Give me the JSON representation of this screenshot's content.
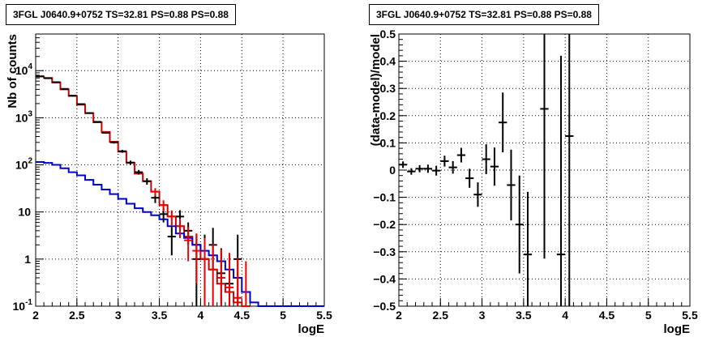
{
  "chart_data": [
    {
      "type": "line",
      "title": "3FGL J0640.9+0752 TS=32.81 PS=0.88 PS=0.88",
      "xlabel": "logE",
      "ylabel": "Nb of counts",
      "xlim": [
        2,
        5.5
      ],
      "ylim": [
        0.1,
        60000
      ],
      "yscale": "log",
      "grid": true,
      "x_ticks": [
        "2",
        "2.5",
        "3",
        "3.5",
        "4",
        "4.5",
        "5",
        "5.5"
      ],
      "y_ticks": [
        "10^-1",
        "1",
        "10",
        "10^2",
        "10^3",
        "10^4"
      ],
      "series": [
        {
          "color": "#cc0000",
          "style": "step",
          "x": [
            2.05,
            2.15,
            2.25,
            2.35,
            2.45,
            2.55,
            2.65,
            2.75,
            2.85,
            2.95,
            3.05,
            3.15,
            3.25,
            3.35,
            3.45,
            3.55,
            3.65,
            3.75,
            3.85,
            3.95,
            4.05,
            4.15,
            4.25,
            4.35,
            4.45,
            4.55
          ],
          "y": [
            7500,
            7000,
            5600,
            4000,
            2900,
            1900,
            1250,
            800,
            500,
            310,
            190,
            110,
            65,
            45,
            27,
            14,
            8,
            5,
            3,
            2,
            1,
            0.6,
            0.3,
            0.2,
            0.12,
            0.1
          ]
        },
        {
          "color": "#0000cc",
          "style": "step",
          "x": [
            2.05,
            2.15,
            2.25,
            2.35,
            2.45,
            2.55,
            2.65,
            2.75,
            2.85,
            2.95,
            3.05,
            3.15,
            3.25,
            3.35,
            3.45,
            3.55,
            3.65,
            3.75,
            3.85,
            3.95,
            4.05,
            4.15,
            4.25,
            4.35,
            4.45,
            4.55,
            4.65,
            4.75,
            4.85,
            4.95,
            5.05,
            5.15,
            5.25,
            5.35,
            5.45
          ],
          "y": [
            115,
            110,
            100,
            85,
            70,
            60,
            48,
            38,
            30,
            24,
            19,
            15,
            12,
            10,
            8.5,
            7,
            5,
            3.5,
            2.8,
            2,
            1.5,
            1.2,
            0.9,
            0.6,
            0.4,
            0.2,
            0.12,
            0.1,
            0.1,
            0.1,
            0.1,
            0.1,
            0.1,
            0.1,
            0.1
          ]
        },
        {
          "color": "#000000",
          "style": "errorbar",
          "x": [
            2.05,
            2.15,
            2.25,
            2.35,
            2.45,
            2.55,
            2.65,
            2.75,
            2.85,
            2.95,
            3.05,
            3.15,
            3.25,
            3.35,
            3.45,
            3.55,
            3.65,
            3.75,
            3.85,
            3.95,
            4.05,
            4.15,
            4.25,
            4.35,
            4.45
          ],
          "y": [
            7600,
            6900,
            5700,
            4100,
            2950,
            1950,
            1260,
            820,
            480,
            300,
            195,
            112,
            70,
            45,
            20,
            9,
            3,
            8,
            4,
            1,
            1,
            2,
            0.5,
            0.3,
            1
          ],
          "yerr_low": [
            90,
            85,
            75,
            64,
            54,
            44,
            35,
            28,
            22,
            17,
            14,
            11,
            8,
            7,
            4.5,
            3,
            1.8,
            2.9,
            2,
            0.9,
            0.9,
            1.4,
            0.45,
            0.27,
            0.9
          ],
          "yerr_high": [
            90,
            85,
            75,
            64,
            54,
            44,
            35,
            28,
            22,
            17,
            14,
            11,
            8,
            7,
            4.5,
            3,
            1.8,
            2.9,
            2,
            2.3,
            2.3,
            2.6,
            1.2,
            1,
            2.3
          ]
        },
        {
          "color": "#ee0000",
          "style": "errorbar",
          "x": [
            3.45,
            3.55,
            3.65,
            3.75,
            3.85,
            3.95,
            4.05,
            4.15,
            4.25,
            4.35,
            4.45,
            4.55
          ],
          "y": [
            27,
            14,
            8,
            5,
            2.5,
            1.5,
            1,
            0.6,
            0.4,
            0.25,
            0.15,
            0.1
          ],
          "yerr_low": [
            5,
            3.7,
            2.8,
            2.2,
            1.6,
            1.2,
            0.9,
            0.55,
            0.38,
            0.24,
            0.14,
            0.09
          ],
          "yerr_high": [
            5,
            3.7,
            2.8,
            2.2,
            2.3,
            2,
            1.8,
            1.5,
            1.2,
            1.1,
            0.9,
            0.8
          ]
        }
      ]
    },
    {
      "type": "scatter",
      "title": "3FGL J0640.9+0752 TS=32.81 PS=0.88 PS=0.88",
      "xlabel": "logE",
      "ylabel": "(data-model)/model",
      "xlim": [
        2,
        5.5
      ],
      "ylim": [
        -0.5,
        0.5
      ],
      "grid": true,
      "x_ticks": [
        "2",
        "2.5",
        "3",
        "3.5",
        "4",
        "4.5",
        "5",
        "5.5"
      ],
      "y_ticks": [
        "−0.5",
        "−0.4",
        "−0.3",
        "−0.2",
        "−0.1",
        "0",
        "0.1",
        "0.2",
        "0.3",
        "0.4",
        "0.5"
      ],
      "series": [
        {
          "color": "#000000",
          "x": [
            2.05,
            2.15,
            2.25,
            2.35,
            2.45,
            2.55,
            2.65,
            2.75,
            2.85,
            2.95,
            3.05,
            3.15,
            3.25,
            3.35,
            3.45,
            3.55,
            3.75,
            3.95,
            4.05
          ],
          "y": [
            0.02,
            -0.005,
            0.005,
            0.005,
            -0.002,
            0.033,
            0.01,
            0.055,
            -0.03,
            -0.09,
            0.04,
            0.013,
            0.175,
            -0.055,
            -0.2,
            -0.31,
            0.225,
            -0.31,
            0.125
          ],
          "yerr": [
            0.012,
            0.012,
            0.013,
            0.015,
            0.018,
            0.02,
            0.023,
            0.027,
            0.035,
            0.045,
            0.055,
            0.07,
            0.11,
            0.13,
            0.18,
            0.23,
            0.55,
            0.73,
            0.7
          ]
        }
      ]
    }
  ]
}
